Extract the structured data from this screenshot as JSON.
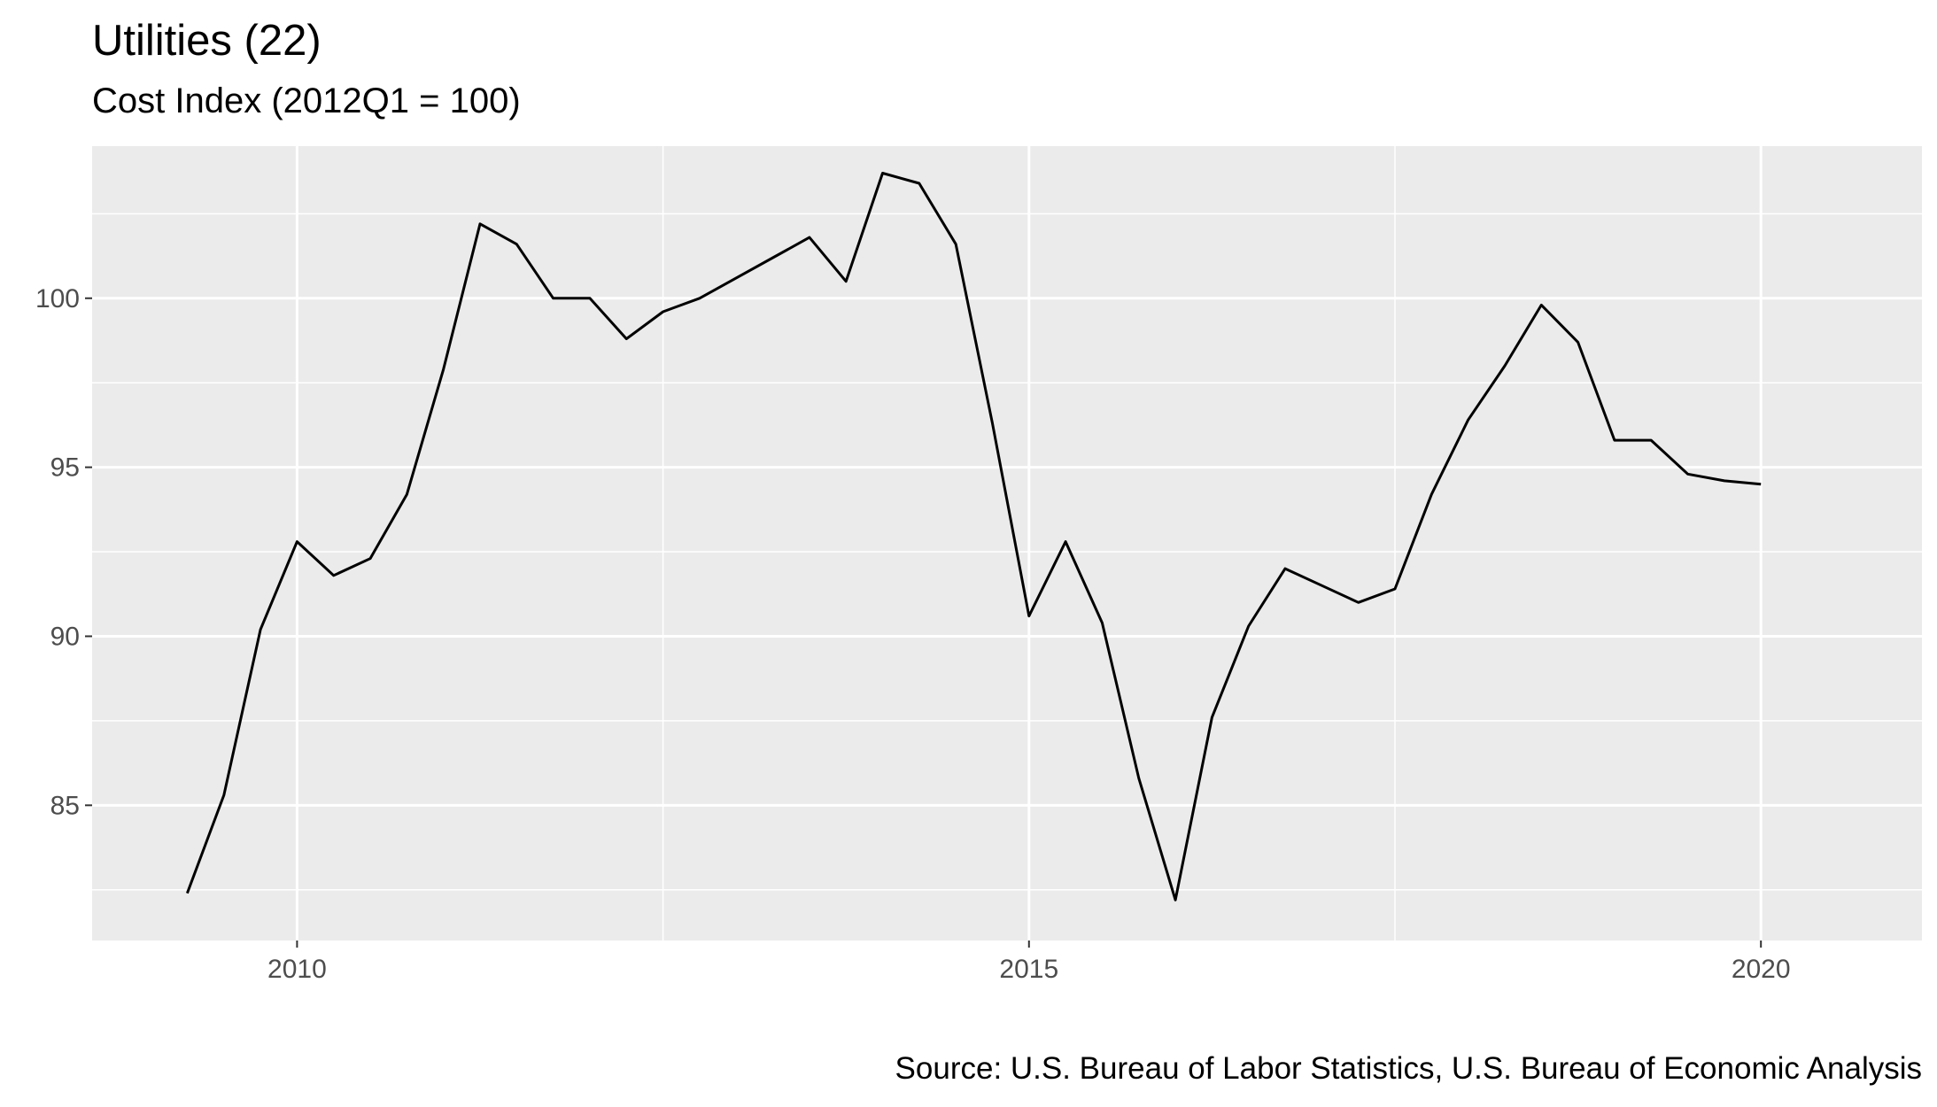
{
  "chart_data": {
    "type": "line",
    "title": "Utilities (22)",
    "subtitle": "Cost Index (2012Q1 = 100)",
    "caption": "Source: U.S. Bureau of Labor Statistics, U.S. Bureau of Economic Analysis",
    "xlabel": "",
    "ylabel": "",
    "xlim": [
      2008.6,
      2021.1
    ],
    "ylim": [
      81.0,
      104.5
    ],
    "x_ticks": [
      2010,
      2015,
      2020
    ],
    "x_tick_labels": [
      "2010",
      "2015",
      "2020"
    ],
    "y_ticks": [
      85,
      90,
      95,
      100
    ],
    "y_tick_labels": [
      "85",
      "90",
      "95",
      "100"
    ],
    "grid": true,
    "legend": "none",
    "colors": {
      "panel": "#ebebeb",
      "grid": "#ffffff",
      "line": "#000000",
      "tick_text": "#4d4d4d"
    },
    "series": [
      {
        "x": [
          2009.25,
          2009.5,
          2009.75,
          2010.0,
          2010.25,
          2010.5,
          2010.75,
          2011.0,
          2011.25,
          2011.5,
          2011.75,
          2012.0,
          2012.25,
          2012.5,
          2012.75,
          2013.0,
          2013.25,
          2013.5,
          2013.75,
          2014.0,
          2014.25,
          2014.5,
          2014.75,
          2015.0,
          2015.25,
          2015.5,
          2015.75,
          2016.0,
          2016.25,
          2016.5,
          2016.75,
          2017.0,
          2017.25,
          2017.5,
          2017.75,
          2018.0,
          2018.25,
          2018.5,
          2018.75,
          2019.0,
          2019.25,
          2019.5,
          2019.75,
          2020.0
        ],
        "values": [
          82.4,
          85.3,
          90.2,
          92.8,
          91.8,
          92.3,
          94.2,
          97.9,
          102.2,
          101.6,
          100.0,
          100.0,
          98.8,
          99.6,
          100.0,
          100.6,
          101.2,
          101.8,
          100.5,
          103.7,
          103.4,
          101.6,
          96.3,
          90.6,
          92.8,
          90.4,
          85.8,
          82.2,
          87.6,
          90.3,
          92.0,
          91.5,
          91.0,
          91.4,
          94.2,
          96.4,
          98.0,
          99.8,
          98.7,
          95.8,
          95.8,
          94.8,
          94.6,
          94.5
        ]
      }
    ]
  }
}
